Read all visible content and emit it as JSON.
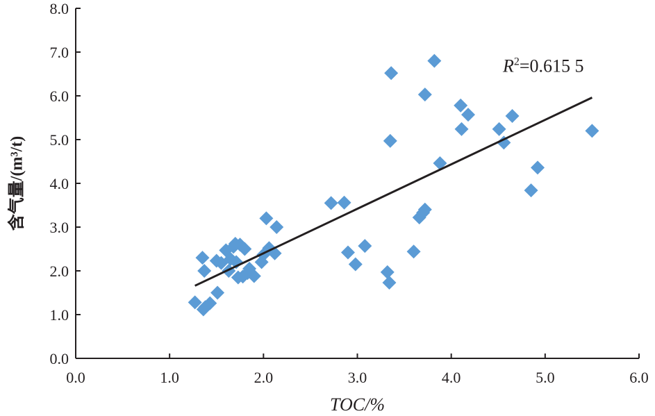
{
  "chart_data": {
    "type": "scatter",
    "xlabel": "TOC/%",
    "ylabel": "含气量/(m³/t)",
    "xlim": [
      0,
      6
    ],
    "ylim": [
      0,
      8
    ],
    "x_ticks": [
      "0.0",
      "1.0",
      "2.0",
      "3.0",
      "4.0",
      "5.0",
      "6.0"
    ],
    "y_ticks": [
      "0.0",
      "1.0",
      "2.0",
      "3.0",
      "4.0",
      "5.0",
      "6.0",
      "7.0",
      "8.0"
    ],
    "grid": false,
    "marker": "diamond",
    "marker_color": "#5b9bd5",
    "points": [
      {
        "x": 1.27,
        "y": 1.28
      },
      {
        "x": 1.36,
        "y": 1.12
      },
      {
        "x": 1.38,
        "y": 1.17
      },
      {
        "x": 1.43,
        "y": 1.26
      },
      {
        "x": 1.51,
        "y": 1.5
      },
      {
        "x": 1.35,
        "y": 2.3
      },
      {
        "x": 1.37,
        "y": 2.0
      },
      {
        "x": 1.5,
        "y": 2.23
      },
      {
        "x": 1.55,
        "y": 2.18
      },
      {
        "x": 1.6,
        "y": 2.47
      },
      {
        "x": 1.63,
        "y": 2.0
      },
      {
        "x": 1.65,
        "y": 2.27
      },
      {
        "x": 1.68,
        "y": 2.55
      },
      {
        "x": 1.7,
        "y": 2.62
      },
      {
        "x": 1.71,
        "y": 2.2
      },
      {
        "x": 1.73,
        "y": 1.85
      },
      {
        "x": 1.75,
        "y": 2.6
      },
      {
        "x": 1.78,
        "y": 1.87
      },
      {
        "x": 1.8,
        "y": 2.5
      },
      {
        "x": 1.83,
        "y": 1.95
      },
      {
        "x": 1.85,
        "y": 2.05
      },
      {
        "x": 1.9,
        "y": 1.88
      },
      {
        "x": 1.98,
        "y": 2.2
      },
      {
        "x": 2.0,
        "y": 2.37
      },
      {
        "x": 2.03,
        "y": 3.2
      },
      {
        "x": 2.06,
        "y": 2.52
      },
      {
        "x": 2.12,
        "y": 2.4
      },
      {
        "x": 2.14,
        "y": 3.0
      },
      {
        "x": 2.72,
        "y": 3.55
      },
      {
        "x": 2.86,
        "y": 3.56
      },
      {
        "x": 2.9,
        "y": 2.42
      },
      {
        "x": 2.98,
        "y": 2.15
      },
      {
        "x": 3.08,
        "y": 2.57
      },
      {
        "x": 3.32,
        "y": 1.97
      },
      {
        "x": 3.34,
        "y": 1.73
      },
      {
        "x": 3.36,
        "y": 6.52
      },
      {
        "x": 3.35,
        "y": 4.97
      },
      {
        "x": 3.6,
        "y": 2.44
      },
      {
        "x": 3.66,
        "y": 3.22
      },
      {
        "x": 3.7,
        "y": 3.33
      },
      {
        "x": 3.72,
        "y": 3.4
      },
      {
        "x": 3.72,
        "y": 6.03
      },
      {
        "x": 3.82,
        "y": 6.8
      },
      {
        "x": 3.88,
        "y": 4.46
      },
      {
        "x": 4.1,
        "y": 5.78
      },
      {
        "x": 4.11,
        "y": 5.24
      },
      {
        "x": 4.18,
        "y": 5.57
      },
      {
        "x": 4.51,
        "y": 5.24
      },
      {
        "x": 4.56,
        "y": 4.93
      },
      {
        "x": 4.65,
        "y": 5.54
      },
      {
        "x": 4.85,
        "y": 3.84
      },
      {
        "x": 4.92,
        "y": 4.36
      },
      {
        "x": 5.5,
        "y": 5.2
      }
    ],
    "trendline": {
      "x": [
        1.27,
        5.5
      ],
      "y": [
        1.66,
        5.96
      ]
    },
    "annotation": {
      "r_label": "R",
      "r_exponent": "2",
      "value": "=0.615 5",
      "anchor_x": 4.55,
      "anchor_y": 6.55
    }
  }
}
